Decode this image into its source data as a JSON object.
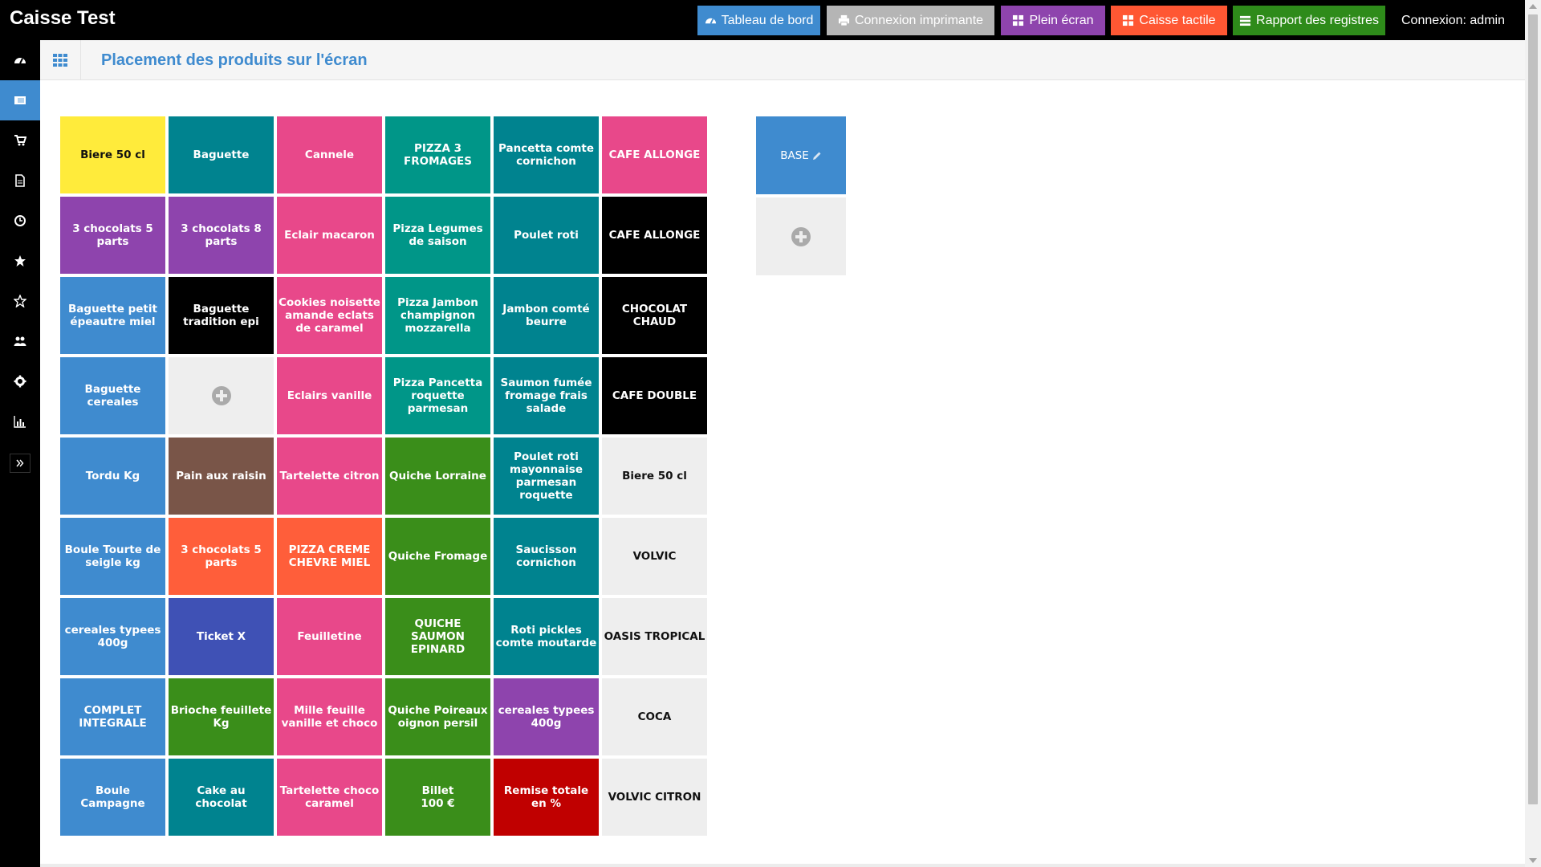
{
  "app": {
    "title": "Caisse Test"
  },
  "topbar": {
    "buttons": [
      {
        "label": "Tableau de bord",
        "icon": "dashboard-icon",
        "color": "#3f8bcf"
      },
      {
        "label": "Connexion imprimante",
        "icon": "printer-icon",
        "color": "#b5b5b5"
      },
      {
        "label": "Plein écran",
        "icon": "fullscreen-icon",
        "color": "#8e44ad"
      },
      {
        "label": "Caisse tactile",
        "icon": "grid-icon",
        "color": "#ff5733"
      },
      {
        "label": "Rapport des registres",
        "icon": "list-icon",
        "color": "#2e8b1a"
      }
    ],
    "login": "Connexion: admin"
  },
  "sidebar": {
    "items": [
      {
        "icon": "dashboard-icon",
        "active": false
      },
      {
        "icon": "layout-icon",
        "active": true
      },
      {
        "icon": "cart-icon",
        "active": false
      },
      {
        "icon": "document-icon",
        "active": false
      },
      {
        "icon": "clock-icon",
        "active": false
      },
      {
        "icon": "star-icon",
        "active": false
      },
      {
        "icon": "star-outline-icon",
        "active": false
      },
      {
        "icon": "users-icon",
        "active": false
      },
      {
        "icon": "gear-icon",
        "active": false
      },
      {
        "icon": "bar-chart-icon",
        "active": false
      }
    ],
    "expand_icon": "double-chevron-right-icon"
  },
  "header": {
    "title": "Placement des produits sur l'écran",
    "grid_icon": "grid-icon"
  },
  "colors": {
    "yellow": "#ffeb3b",
    "teal": "#00838f",
    "tealgreen": "#009688",
    "pink": "#e8488a",
    "purple": "#8e44ad",
    "black": "#000000",
    "blue": "#3f8bcf",
    "brown": "#795548",
    "orange": "#ff5e3a",
    "green": "#3a8e1a",
    "indigo": "#3f51b5",
    "red": "#c00000",
    "light": "#eeeeee"
  },
  "products": [
    {
      "label": "Biere 50 cl",
      "bg": "#ffeb3b",
      "dark": true
    },
    {
      "label": "Baguette",
      "bg": "#00838f"
    },
    {
      "label": "Cannele",
      "bg": "#e8488a"
    },
    {
      "label": "PIZZA 3 FROMAGES",
      "bg": "#009688"
    },
    {
      "label": "Pancetta comte cornichon",
      "bg": "#00838f"
    },
    {
      "label": "CAFE ALLONGE",
      "bg": "#e8488a"
    },
    {
      "label": "3 chocolats 5 parts",
      "bg": "#8e44ad"
    },
    {
      "label": "3 chocolats 8 parts",
      "bg": "#8e44ad"
    },
    {
      "label": "Eclair macaron",
      "bg": "#e8488a"
    },
    {
      "label": "Pizza Legumes de saison",
      "bg": "#009688"
    },
    {
      "label": "Poulet roti",
      "bg": "#00838f"
    },
    {
      "label": "CAFE ALLONGE",
      "bg": "#000000"
    },
    {
      "label": "Baguette petit épeautre miel",
      "bg": "#3f8bcf"
    },
    {
      "label": "Baguette tradition epi",
      "bg": "#000000"
    },
    {
      "label": "Cookies noisette amande eclats de caramel",
      "bg": "#e8488a"
    },
    {
      "label": "Pizza Jambon champignon mozzarella",
      "bg": "#009688"
    },
    {
      "label": "Jambon comté beurre",
      "bg": "#00838f"
    },
    {
      "label": "CHOCOLAT CHAUD",
      "bg": "#000000"
    },
    {
      "label": "Baguette cereales",
      "bg": "#3f8bcf"
    },
    {
      "label": "",
      "bg": "#eeeeee",
      "empty": true
    },
    {
      "label": "Eclairs vanille",
      "bg": "#e8488a"
    },
    {
      "label": "Pizza Pancetta roquette parmesan",
      "bg": "#009688"
    },
    {
      "label": "Saumon fumée fromage frais salade",
      "bg": "#00838f"
    },
    {
      "label": "CAFE DOUBLE",
      "bg": "#000000"
    },
    {
      "label": "Tordu Kg",
      "bg": "#3f8bcf"
    },
    {
      "label": "Pain aux raisin",
      "bg": "#795548"
    },
    {
      "label": "Tartelette citron",
      "bg": "#e8488a"
    },
    {
      "label": "Quiche Lorraine",
      "bg": "#3a8e1a"
    },
    {
      "label": "Poulet roti mayonnaise parmesan roquette",
      "bg": "#00838f"
    },
    {
      "label": "Biere 50 cl",
      "bg": "#eeeeee",
      "dark": true
    },
    {
      "label": "Boule Tourte de seigle kg",
      "bg": "#3f8bcf"
    },
    {
      "label": "3 chocolats 5 parts",
      "bg": "#ff5e3a"
    },
    {
      "label": "PIZZA CREME CHEVRE MIEL",
      "bg": "#ff5e3a"
    },
    {
      "label": "Quiche Fromage",
      "bg": "#3a8e1a"
    },
    {
      "label": "Saucisson cornichon",
      "bg": "#00838f"
    },
    {
      "label": "VOLVIC",
      "bg": "#eeeeee",
      "dark": true
    },
    {
      "label": "cereales typees 400g",
      "bg": "#3f8bcf"
    },
    {
      "label": "Ticket X",
      "bg": "#3f51b5"
    },
    {
      "label": "Feuilletine",
      "bg": "#e8488a"
    },
    {
      "label": "QUICHE SAUMON EPINARD",
      "bg": "#3a8e1a"
    },
    {
      "label": "Roti pickles comte moutarde",
      "bg": "#00838f"
    },
    {
      "label": "OASIS TROPICAL",
      "bg": "#eeeeee",
      "dark": true
    },
    {
      "label": "COMPLET INTEGRALE",
      "bg": "#3f8bcf"
    },
    {
      "label": "Brioche feuillete Kg",
      "bg": "#3a8e1a"
    },
    {
      "label": "Mille feuille vanille et choco",
      "bg": "#e8488a"
    },
    {
      "label": "Quiche Poireaux oignon persil",
      "bg": "#3a8e1a"
    },
    {
      "label": "cereales typees 400g",
      "bg": "#8e44ad"
    },
    {
      "label": "COCA",
      "bg": "#eeeeee",
      "dark": true
    },
    {
      "label": "Boule Campagne",
      "bg": "#3f8bcf"
    },
    {
      "label": "Cake au chocolat",
      "bg": "#00838f"
    },
    {
      "label": "Tartelette choco caramel",
      "bg": "#e8488a"
    },
    {
      "label": "Billet\n100 €",
      "bg": "#3a8e1a"
    },
    {
      "label": "Remise totale en %",
      "bg": "#c00000"
    },
    {
      "label": "VOLVIC CITRON",
      "bg": "#eeeeee",
      "dark": true
    }
  ],
  "categories": [
    {
      "label": "BASE",
      "bg": "#3f8bcf",
      "icon": "pencil-icon"
    }
  ]
}
